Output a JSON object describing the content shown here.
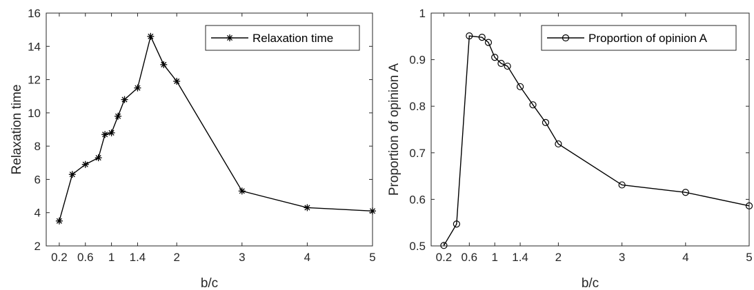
{
  "chart_data": [
    {
      "type": "line",
      "xlabel": "b/c",
      "ylabel": "Relaxation time",
      "xlim": [
        0,
        5
      ],
      "ylim": [
        2,
        16
      ],
      "xticks": [
        0.2,
        0.6,
        1,
        1.4,
        2,
        3,
        4,
        5
      ],
      "xtick_labels": [
        "0.2",
        "0.6",
        "1",
        "1.4",
        "2",
        "3",
        "4",
        "5"
      ],
      "yticks": [
        2,
        4,
        6,
        8,
        10,
        12,
        14,
        16
      ],
      "ytick_labels": [
        "2",
        "4",
        "6",
        "8",
        "10",
        "12",
        "14",
        "16"
      ],
      "legend_position": "top-right",
      "grid": false,
      "series": [
        {
          "name": "Relaxation time",
          "marker": "asterisk",
          "color": "#000000",
          "x": [
            0.2,
            0.4,
            0.6,
            0.8,
            0.9,
            1.0,
            1.1,
            1.2,
            1.4,
            1.6,
            1.8,
            2.0,
            3.0,
            4.0,
            5.0
          ],
          "y": [
            3.5,
            6.3,
            6.9,
            7.3,
            8.7,
            8.8,
            9.8,
            10.8,
            11.5,
            14.6,
            12.9,
            11.9,
            5.3,
            4.3,
            4.1
          ]
        }
      ]
    },
    {
      "type": "line",
      "xlabel": "b/c",
      "ylabel": "Proportion of opinion A",
      "xlim": [
        0,
        5
      ],
      "ylim": [
        0.5,
        1
      ],
      "xticks": [
        0.2,
        0.6,
        1,
        1.4,
        2,
        3,
        4,
        5
      ],
      "xtick_labels": [
        "0.2",
        "0.6",
        "1",
        "1.4",
        "2",
        "3",
        "4",
        "5"
      ],
      "yticks": [
        0.5,
        0.6,
        0.7,
        0.8,
        0.9,
        1
      ],
      "ytick_labels": [
        "0.5",
        "0.6",
        "0.7",
        "0.8",
        "0.9",
        "1"
      ],
      "legend_position": "top-right",
      "grid": false,
      "series": [
        {
          "name": "Proportion of opinion A",
          "marker": "circle",
          "color": "#000000",
          "x": [
            0.2,
            0.4,
            0.6,
            0.8,
            0.9,
            1.0,
            1.1,
            1.2,
            1.4,
            1.6,
            1.8,
            2.0,
            3.0,
            4.0,
            5.0
          ],
          "y": [
            0.501,
            0.547,
            0.951,
            0.948,
            0.937,
            0.905,
            0.892,
            0.886,
            0.842,
            0.803,
            0.765,
            0.719,
            0.631,
            0.615,
            0.586
          ]
        }
      ]
    }
  ]
}
